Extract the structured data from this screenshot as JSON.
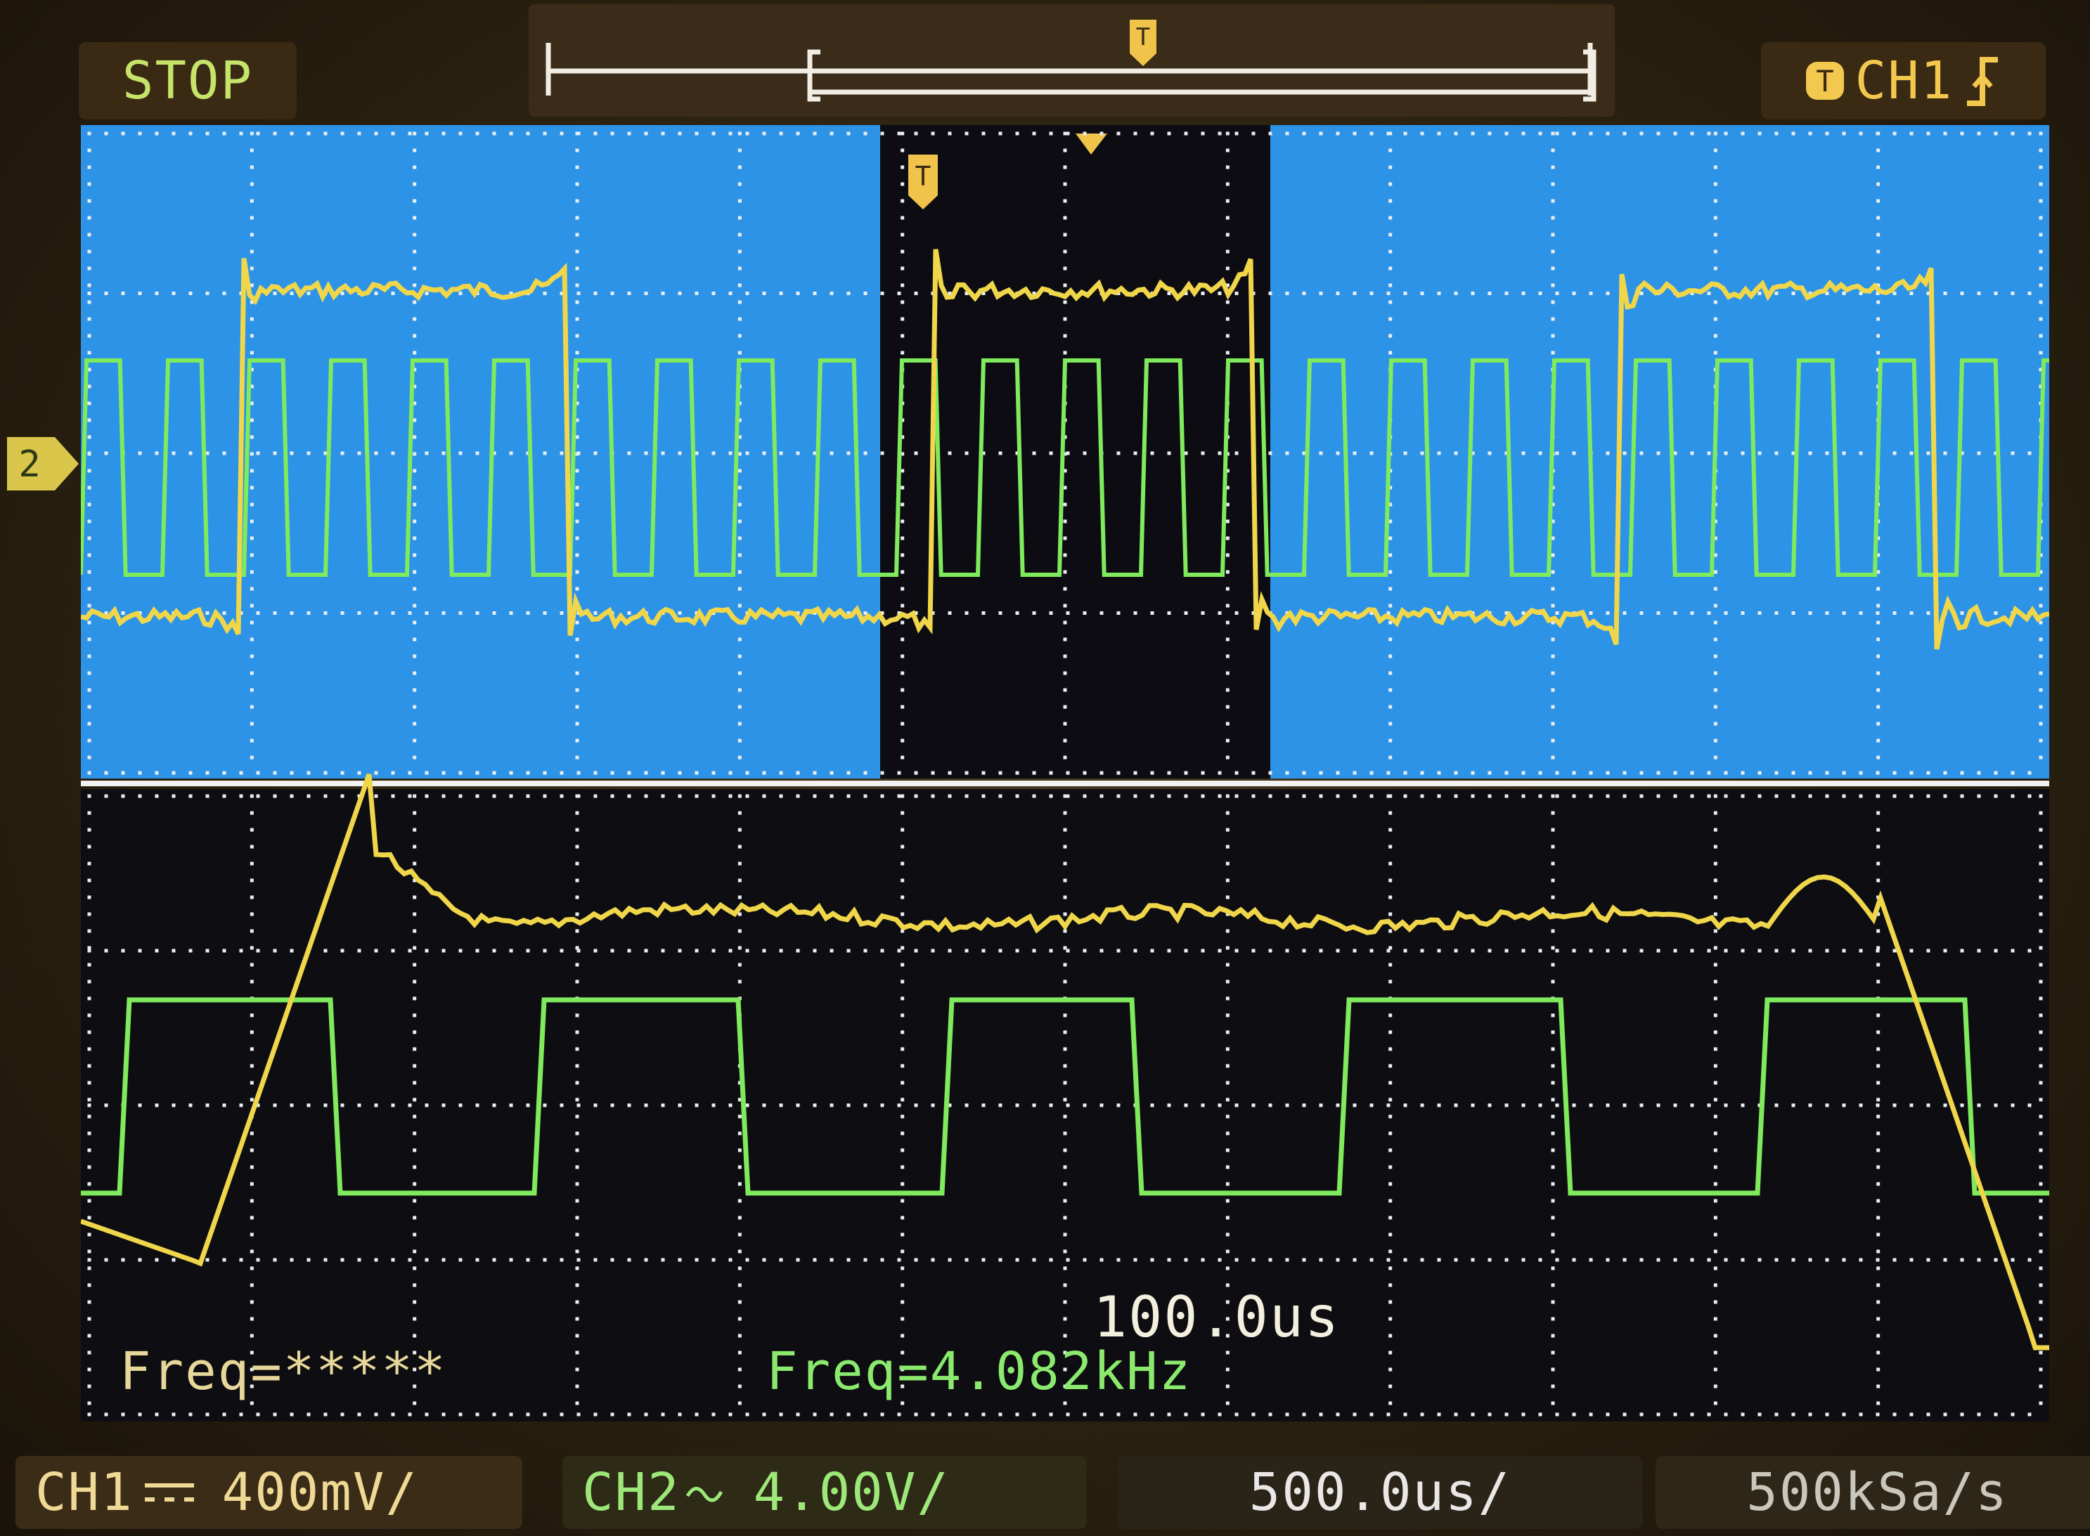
{
  "top": {
    "run_state": "STOP",
    "trigger_source": "CH1",
    "trigger_edge_icon": "rising-edge-icon"
  },
  "measurements": {
    "ch1_freq": "Freq=*****",
    "ch2_freq": "Freq=4.082kHz"
  },
  "zoom_timebase": "100.0us",
  "bottom": {
    "ch1_label": "CH1",
    "ch1_coupling_icon": "dc-coupling-icon",
    "ch1_scale": "400mV/",
    "ch2_label": "CH2",
    "ch2_coupling_icon": "ac-coupling-icon",
    "ch2_scale": "4.00V/",
    "timebase": "500.0us/",
    "sample_rate": "500kSa/s"
  },
  "colors": {
    "ch1": "#f0d64a",
    "ch2": "#7fea5c",
    "upper_background": "#2d93e6",
    "zoom_window": "#0c0c12",
    "lower_background": "#0e0e12",
    "grid_dots": "#e8eef2"
  }
}
